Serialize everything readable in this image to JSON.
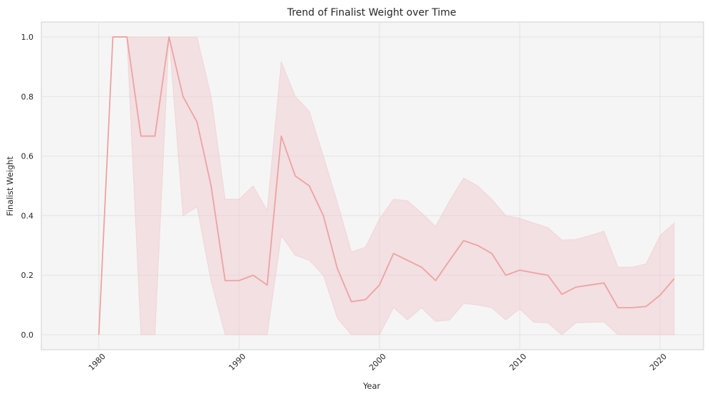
{
  "chart_data": {
    "type": "line",
    "title": "Trend of Finalist Weight over Time",
    "xlabel": "Year",
    "ylabel": "Finalist Weight",
    "xlim": [
      1975.9,
      2023.1
    ],
    "ylim": [
      -0.05,
      1.05
    ],
    "xticks": [
      1980,
      1990,
      2000,
      2010,
      2020
    ],
    "xtick_labels": [
      "1980",
      "1990",
      "2000",
      "2010",
      "2020"
    ],
    "yticks": [
      0.0,
      0.2,
      0.4,
      0.6,
      0.8,
      1.0
    ],
    "ytick_labels": [
      "0.0",
      "0.2",
      "0.4",
      "0.6",
      "0.8",
      "1.0"
    ],
    "grid": true,
    "colors": {
      "line": "#f0a1a1",
      "band": "#f0c8cc",
      "plot_bg": "#f5f5f5",
      "grid": "#e3e3e3"
    },
    "series": [
      {
        "x": [
          1980,
          1981,
          1982,
          1983,
          1984,
          1985,
          1986,
          1987,
          1988,
          1989,
          1990,
          1991,
          1992,
          1993,
          1994,
          1995,
          1996,
          1997,
          1998,
          1999,
          2000,
          2001,
          2002,
          2003,
          2004,
          2005,
          2006,
          2007,
          2008,
          2009,
          2010,
          2011,
          2012,
          2013,
          2014,
          2015,
          2016,
          2017,
          2018,
          2019,
          2020,
          2021
        ],
        "y": [
          0.0,
          1.0,
          1.0,
          0.667,
          0.667,
          1.0,
          0.8,
          0.714,
          0.5,
          0.182,
          0.182,
          0.2,
          0.167,
          0.667,
          0.533,
          0.5,
          0.4,
          0.222,
          0.111,
          0.118,
          0.167,
          0.273,
          0.25,
          0.227,
          0.182,
          0.25,
          0.316,
          0.3,
          0.273,
          0.2,
          0.217,
          0.208,
          0.2,
          0.136,
          0.16,
          0.167,
          0.174,
          0.091,
          0.091,
          0.095,
          0.133,
          0.188
        ],
        "ci_lower": [
          0.0,
          1.0,
          1.0,
          0.0,
          0.0,
          1.0,
          0.4,
          0.429,
          0.18,
          0.0,
          0.0,
          0.0,
          0.0,
          0.333,
          0.267,
          0.25,
          0.2,
          0.056,
          0.0,
          0.0,
          0.0,
          0.091,
          0.05,
          0.091,
          0.045,
          0.05,
          0.105,
          0.1,
          0.091,
          0.05,
          0.087,
          0.042,
          0.04,
          0.0,
          0.04,
          0.042,
          0.043,
          0.0,
          0.0,
          0.0,
          0.0,
          0.0
        ],
        "ci_upper": [
          0.0,
          1.0,
          1.0,
          1.0,
          1.0,
          1.0,
          1.0,
          1.0,
          0.8,
          0.455,
          0.455,
          0.5,
          0.417,
          0.917,
          0.8,
          0.75,
          0.6,
          0.444,
          0.278,
          0.294,
          0.389,
          0.455,
          0.45,
          0.409,
          0.364,
          0.45,
          0.526,
          0.5,
          0.455,
          0.4,
          0.391,
          0.375,
          0.36,
          0.318,
          0.32,
          0.333,
          0.348,
          0.227,
          0.227,
          0.238,
          0.333,
          0.375
        ]
      }
    ]
  }
}
